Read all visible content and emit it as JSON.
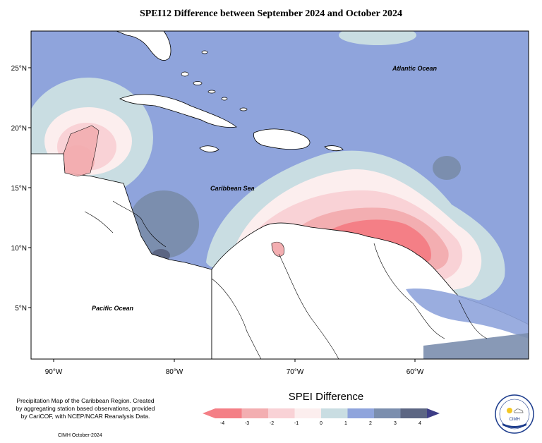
{
  "title": "SPEI12 Difference between September 2024 and October 2024",
  "labels": {
    "atlantic": "Atlantic Ocean",
    "caribbean": "Caribbean Sea",
    "pacific": "Pacific Ocean"
  },
  "lat_ticks": [
    "25°N",
    "20°N",
    "15°N",
    "10°N",
    "5°N"
  ],
  "lon_ticks": [
    "90°W",
    "80°W",
    "70°W",
    "60°W"
  ],
  "legend": {
    "title": "SPEI Difference",
    "ticks": [
      "-4",
      "-3",
      "-2",
      "-1",
      "0",
      "1",
      "2",
      "3",
      "4"
    ],
    "colors": [
      "#f47f86",
      "#f3aeb1",
      "#f9d2d6",
      "#fceeee",
      "#c9dde2",
      "#8fa4dc",
      "#7b8eae",
      "#5c6683",
      "#3d3d86"
    ]
  },
  "note": "Precipitation Map of the Caribbean Region. Created by aggregating station based observations, provided by CariCOF, with NCEP/NCAR Reanalysis Data.",
  "credit": "CIMH October-2024",
  "logo_text": "CIMH"
}
